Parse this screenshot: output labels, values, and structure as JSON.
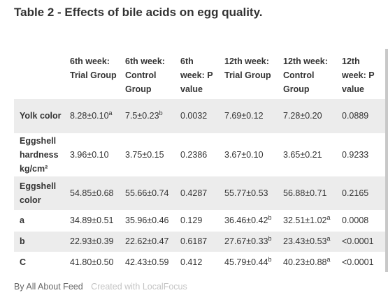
{
  "title": "Table 2 - Effects of bile acids on egg quality.",
  "headers": [
    "",
    "6th week: Trial Group",
    "6th week: Control Group",
    "6th week: P value",
    "12th week: Trial Group",
    "12th week: Control Group",
    "12th week: P value"
  ],
  "rows": [
    {
      "label": "Yolk color",
      "cells": [
        {
          "v": "8.28±0.10",
          "s": "a"
        },
        {
          "v": "7.5±0.23",
          "s": "b"
        },
        {
          "v": "0.0032",
          "s": ""
        },
        {
          "v": "7.69±0.12",
          "s": ""
        },
        {
          "v": "7.28±0.20",
          "s": ""
        },
        {
          "v": "0.0889",
          "s": ""
        }
      ]
    },
    {
      "label": "Eggshell hardness kg/cm²",
      "cells": [
        {
          "v": "3.96±0.10",
          "s": ""
        },
        {
          "v": "3.75±0.15",
          "s": ""
        },
        {
          "v": "0.2386",
          "s": ""
        },
        {
          "v": "3.67±0.10",
          "s": ""
        },
        {
          "v": "3.65±0.21",
          "s": ""
        },
        {
          "v": "0.9233",
          "s": ""
        }
      ]
    },
    {
      "label": "Eggshell color",
      "cells": [
        {
          "v": "54.85±0.68",
          "s": ""
        },
        {
          "v": "55.66±0.74",
          "s": ""
        },
        {
          "v": "0.4287",
          "s": ""
        },
        {
          "v": "55.77±0.53",
          "s": ""
        },
        {
          "v": "56.88±0.71",
          "s": ""
        },
        {
          "v": "0.2165",
          "s": ""
        }
      ]
    },
    {
      "label": "a",
      "cells": [
        {
          "v": "34.89±0.51",
          "s": ""
        },
        {
          "v": "35.96±0.46",
          "s": ""
        },
        {
          "v": "0.129",
          "s": ""
        },
        {
          "v": "36.46±0.42",
          "s": "b"
        },
        {
          "v": "32.51±1.02",
          "s": "a"
        },
        {
          "v": "0.0008",
          "s": ""
        }
      ]
    },
    {
      "label": "b",
      "cells": [
        {
          "v": "22.93±0.39",
          "s": ""
        },
        {
          "v": "22.62±0.47",
          "s": ""
        },
        {
          "v": "0.6187",
          "s": ""
        },
        {
          "v": "27.67±0.33",
          "s": "b"
        },
        {
          "v": "23.43±0.53",
          "s": "a"
        },
        {
          "v": "<0.0001",
          "s": ""
        }
      ]
    },
    {
      "label": "C",
      "cells": [
        {
          "v": "41.80±0.50",
          "s": ""
        },
        {
          "v": "42.43±0.59",
          "s": ""
        },
        {
          "v": "0.412",
          "s": ""
        },
        {
          "v": "45.79±0.44",
          "s": "b"
        },
        {
          "v": "40.23±0.88",
          "s": "a"
        },
        {
          "v": "<0.0001",
          "s": ""
        }
      ]
    }
  ],
  "footer": {
    "by": "By All About Feed",
    "created": "Created with LocalFocus"
  }
}
